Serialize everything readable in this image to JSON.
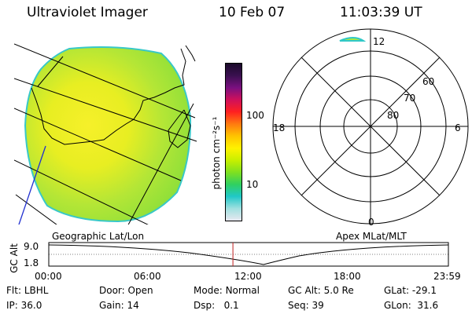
{
  "header": {
    "title": "Ultraviolet Imager",
    "date": "10 Feb 07",
    "time": "11:03:39 UT"
  },
  "colorbar": {
    "unit_label": "photon cm⁻²s⁻¹",
    "tick_100": "100",
    "tick_10": "10",
    "colors_top_to_bottom": [
      "#1a0a2a",
      "#3a1050",
      "#7a1080",
      "#d0105a",
      "#ff2020",
      "#ff7a10",
      "#ffc400",
      "#fff200",
      "#c8f000",
      "#80e020",
      "#30d060",
      "#20c8c8",
      "#a0e0e0",
      "#e8e8f0"
    ]
  },
  "left_panel": {
    "caption": "Geographic Lat/Lon"
  },
  "polar_panel": {
    "caption": "Apex MLat/MLT",
    "mlt_labels": {
      "top": "12",
      "left": "18",
      "right": "6",
      "bottom": "0"
    },
    "lat_labels": [
      "60",
      "70",
      "80"
    ]
  },
  "timeline": {
    "y_label": "GC Alt",
    "y_ticks": [
      "9.0",
      "1.8"
    ],
    "x_ticks": [
      "00:00",
      "06:00",
      "12:00",
      "18:00",
      "23:59"
    ],
    "current_time_fraction": 0.4608
  },
  "info": {
    "flt_label": "Flt:",
    "flt_value": "LBHL",
    "ip_label": "IP:",
    "ip_value": "36.0",
    "door_label": "Door:",
    "door_value": "Open",
    "gain_label": "Gain:",
    "gain_value": "14",
    "mode_label": "Mode:",
    "mode_value": "Normal",
    "dsp_label": "Dsp:",
    "dsp_value": "0.1",
    "gcalt_label": "GC Alt:",
    "gcalt_value": "5.0 Re",
    "seq_label": "Seq:",
    "seq_value": "39",
    "glat_label": "GLat:",
    "glat_value": "-29.1",
    "glon_label": "GLon:",
    "glon_value": "31.6"
  }
}
